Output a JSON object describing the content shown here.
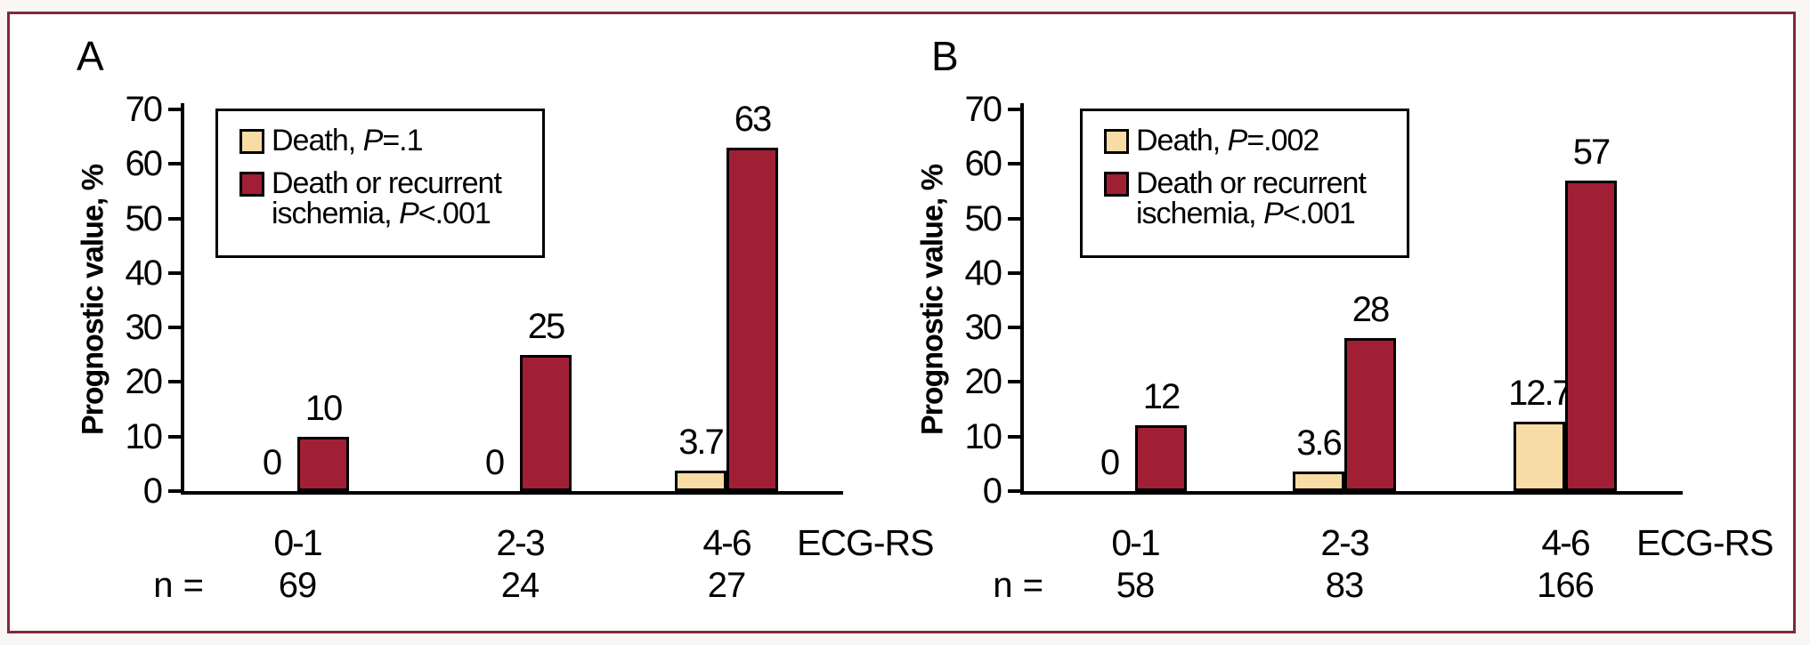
{
  "figure": {
    "frame_border_color": "#7E2A3A",
    "inner_background": "#FFFFFF",
    "page_background": "#FBF6F6"
  },
  "chart_data": [
    {
      "type": "bar",
      "panel_label": "A",
      "ylabel": "Prognostic value, %",
      "ylim": [
        0,
        70
      ],
      "yticks": [
        0,
        10,
        20,
        30,
        40,
        50,
        60,
        70
      ],
      "grid": false,
      "categories": [
        "0-1",
        "2-3",
        "4-6"
      ],
      "category_axis_label": "ECG-RS",
      "n_label": "n =",
      "n_values": [
        "69",
        "24",
        "27"
      ],
      "legend_position": "top-left",
      "series": [
        {
          "name": "Death",
          "p_value": "P=.1",
          "color": "#F8DCA6",
          "values": [
            0,
            0,
            3.7
          ],
          "bar_labels": [
            "0",
            "0",
            "3.7"
          ]
        },
        {
          "name": "Death or recurrent ischemia",
          "p_value": "P<.001",
          "color": "#A11F35",
          "values": [
            10,
            25,
            63
          ],
          "bar_labels": [
            "10",
            "25",
            "63"
          ]
        }
      ],
      "legend": [
        {
          "color": "#F8DCA6",
          "lines": [
            [
              {
                "t": "Death, "
              },
              {
                "t": "P",
                "i": true
              },
              {
                "t": "=.1"
              }
            ]
          ]
        },
        {
          "color": "#A11F35",
          "lines": [
            [
              {
                "t": "Death or recurrent"
              }
            ],
            [
              {
                "t": "ischemia, "
              },
              {
                "t": "P",
                "i": true
              },
              {
                "t": "<.001"
              }
            ]
          ]
        }
      ]
    },
    {
      "type": "bar",
      "panel_label": "B",
      "ylabel": "Prognostic value, %",
      "ylim": [
        0,
        70
      ],
      "yticks": [
        0,
        10,
        20,
        30,
        40,
        50,
        60,
        70
      ],
      "grid": false,
      "categories": [
        "0-1",
        "2-3",
        "4-6"
      ],
      "category_axis_label": "ECG-RS",
      "n_label": "n =",
      "n_values": [
        "58",
        "83",
        "166"
      ],
      "legend_position": "top-left",
      "series": [
        {
          "name": "Death",
          "p_value": "P=.002",
          "color": "#F8DCA6",
          "values": [
            0,
            3.6,
            12.7
          ],
          "bar_labels": [
            "0",
            "3.6",
            "12.7"
          ]
        },
        {
          "name": "Death or recurrent ischemia",
          "p_value": "P<.001",
          "color": "#A11F35",
          "values": [
            12,
            28,
            57
          ],
          "bar_labels": [
            "12",
            "28",
            "57"
          ]
        }
      ],
      "legend": [
        {
          "color": "#F8DCA6",
          "lines": [
            [
              {
                "t": "Death, "
              },
              {
                "t": "P",
                "i": true
              },
              {
                "t": "=.002"
              }
            ]
          ]
        },
        {
          "color": "#A11F35",
          "lines": [
            [
              {
                "t": "Death or recurrent"
              }
            ],
            [
              {
                "t": "ischemia, "
              },
              {
                "t": "P",
                "i": true
              },
              {
                "t": "<.001"
              }
            ]
          ]
        }
      ]
    }
  ]
}
